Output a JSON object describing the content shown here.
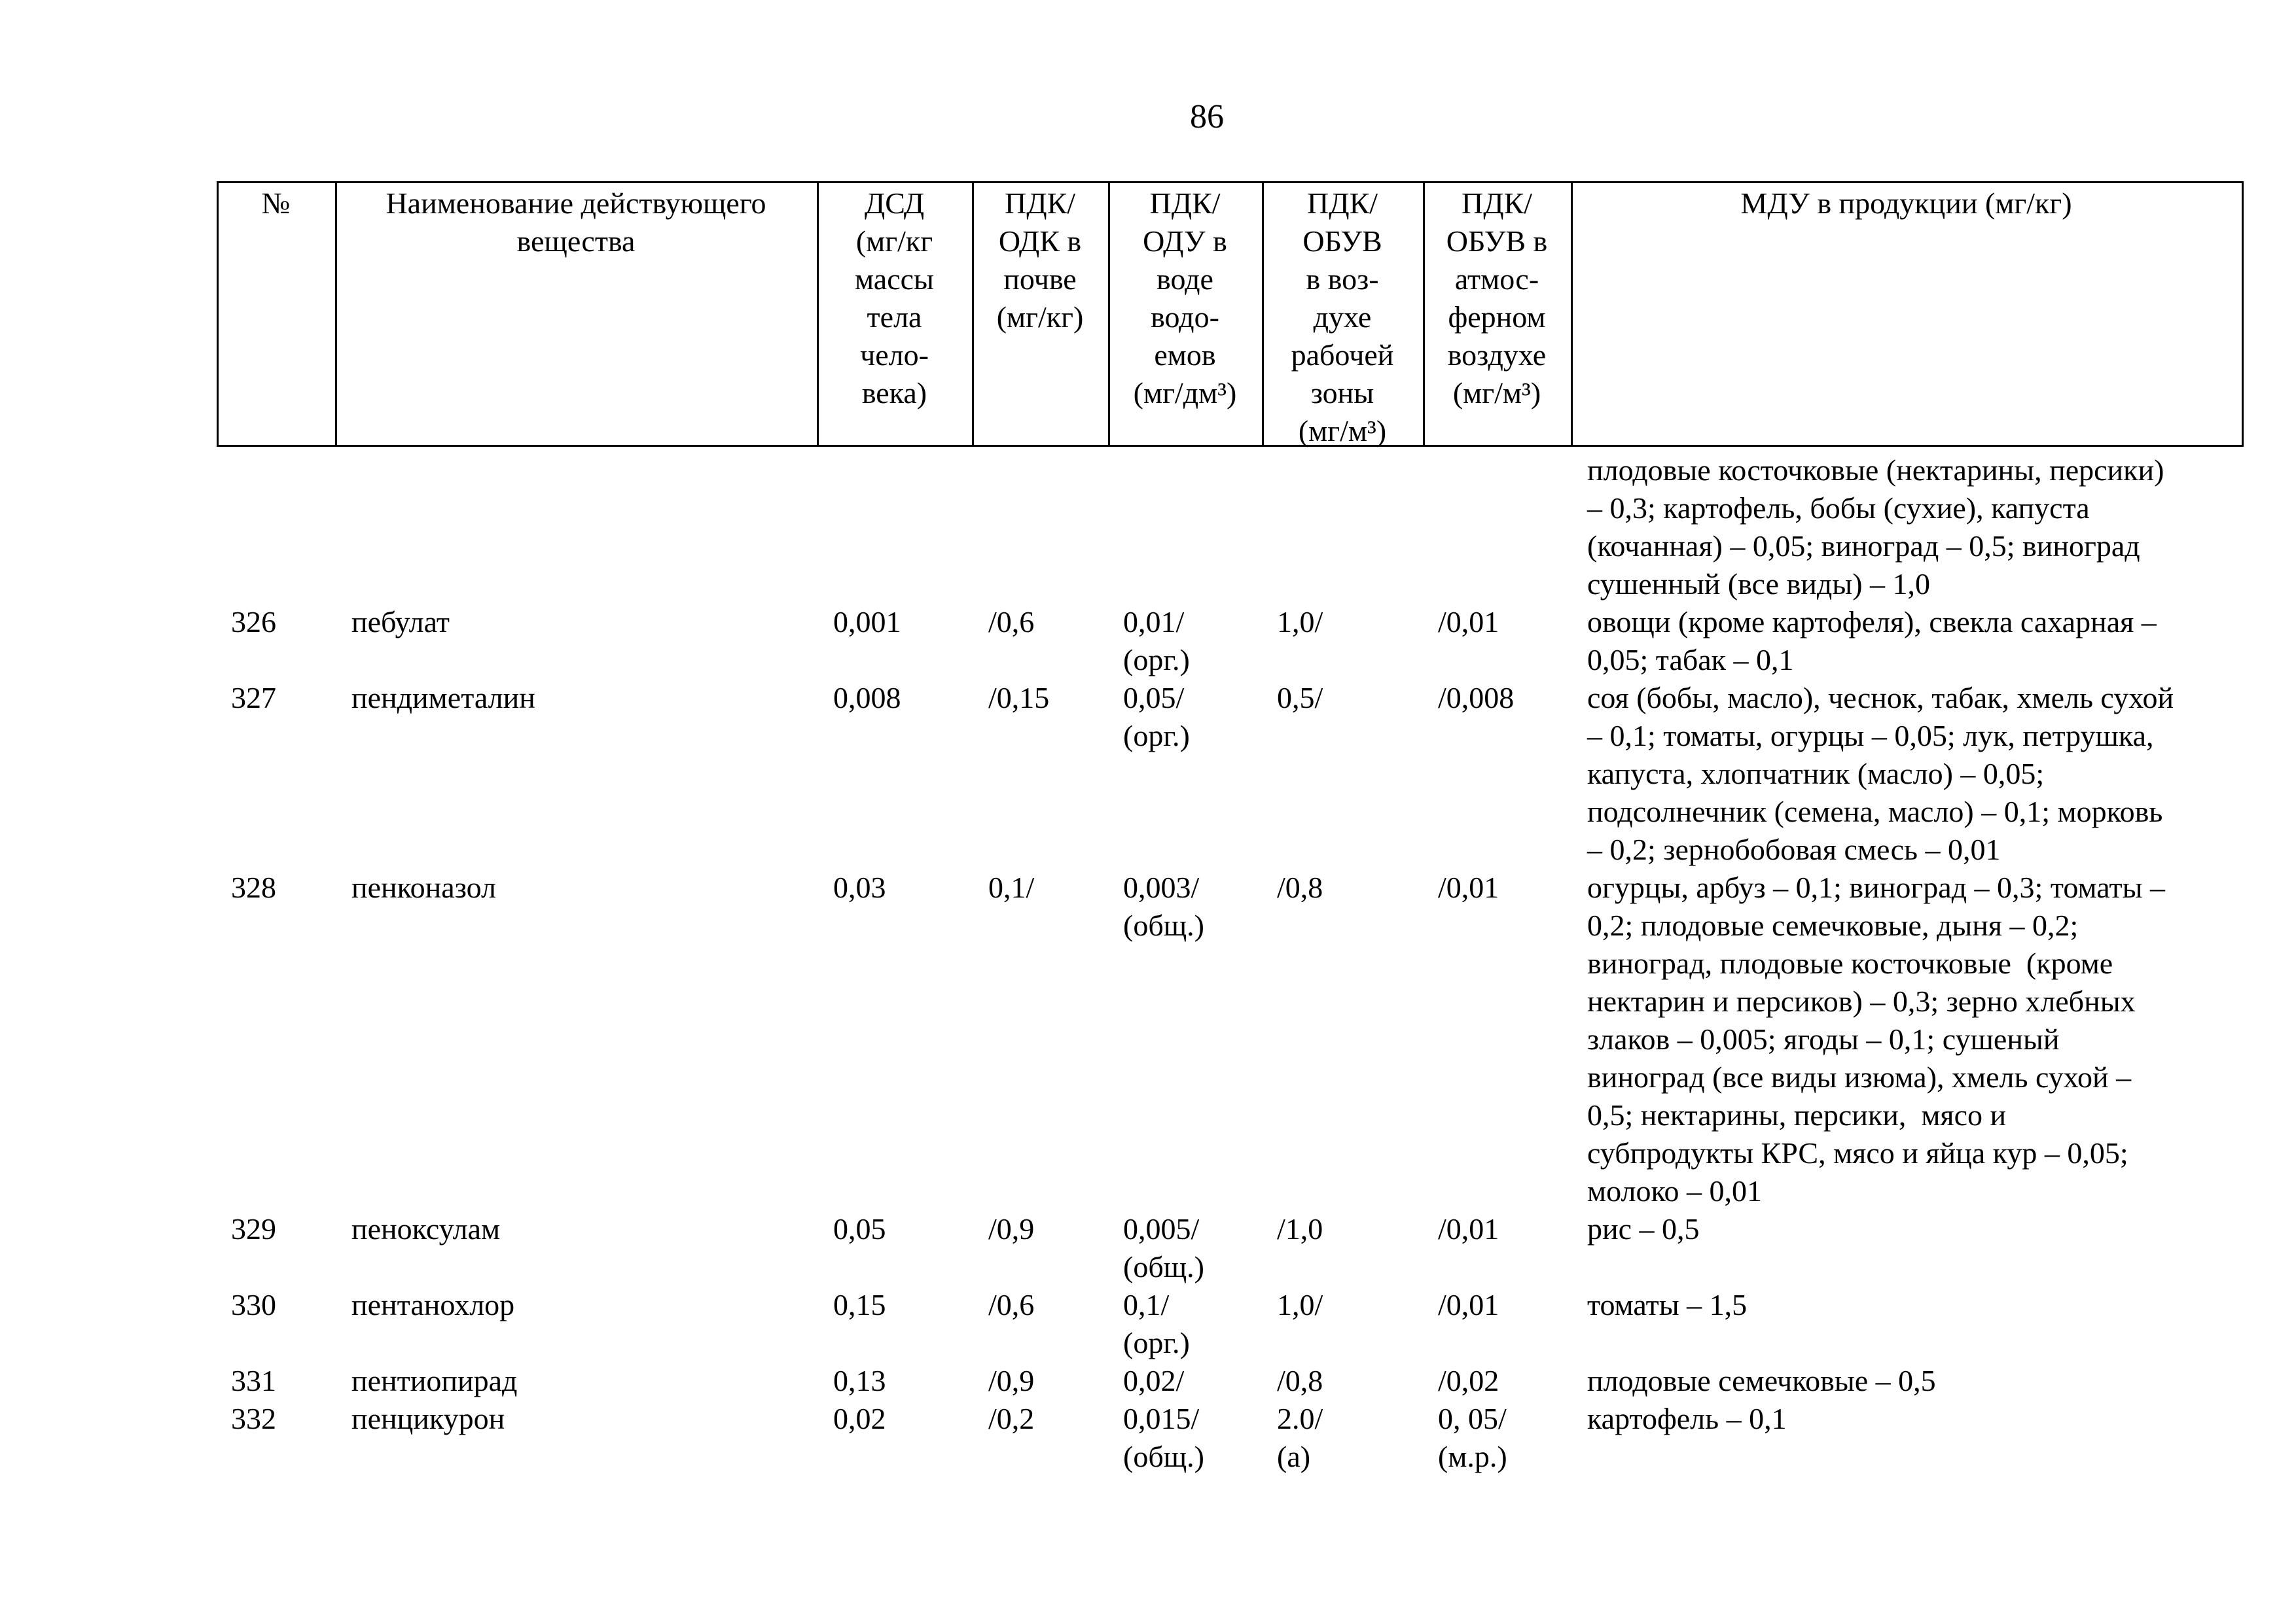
{
  "page_number": "86",
  "table": {
    "header": [
      [
        "№"
      ],
      [
        "Наименование действующего",
        "вещества"
      ],
      [
        "ДСД",
        "(мг/кг",
        "массы",
        "тела",
        "чело-",
        "века)"
      ],
      [
        "ПДК/",
        "ОДК в",
        "почве",
        "(мг/кг)"
      ],
      [
        "ПДК/",
        "ОДУ в",
        "воде",
        "водо-",
        "емов",
        "(мг/дм³)"
      ],
      [
        "ПДК/",
        "ОБУВ",
        "в воз-",
        "духе",
        "рабочей",
        "зоны",
        "(мг/м³)"
      ],
      [
        "ПДК/",
        "ОБУВ в",
        "атмос-",
        "ферном",
        "воздухе",
        "(мг/м³)"
      ],
      [
        "МДУ в продукции (мг/кг)"
      ]
    ],
    "rows": [
      [
        [],
        [],
        [],
        [],
        [],
        [],
        [],
        [
          "плодовые косточковые (нектарины, персики)",
          "– 0,3; картофель, бобы (сухие), капуста",
          "(кочанная) – 0,05; виноград – 0,5; виноград",
          "сушенный (все виды) – 1,0"
        ]
      ],
      [
        [
          "326"
        ],
        [
          "пебулат"
        ],
        [
          "0,001"
        ],
        [
          "/0,6"
        ],
        [
          "0,01/",
          "(орг.)"
        ],
        [
          "1,0/"
        ],
        [
          "/0,01"
        ],
        [
          "овощи (кроме картофеля), свекла сахарная –",
          "0,05; табак – 0,1"
        ]
      ],
      [
        [
          "327"
        ],
        [
          "пендиметалин"
        ],
        [
          "0,008"
        ],
        [
          "/0,15"
        ],
        [
          "0,05/",
          "(орг.)"
        ],
        [
          "0,5/"
        ],
        [
          "/0,008"
        ],
        [
          "соя (бобы, масло), чеснок, табак, хмель сухой",
          "– 0,1; томаты, огурцы – 0,05; лук, петрушка,",
          "капуста, хлопчатник (масло) – 0,05;",
          "подсолнечник (семена, масло) – 0,1; морковь",
          "– 0,2; зернобобовая смесь – 0,01"
        ]
      ],
      [
        [
          "328"
        ],
        [
          "пенконазол"
        ],
        [
          "0,03"
        ],
        [
          "0,1/"
        ],
        [
          "0,003/",
          "(общ.)"
        ],
        [
          "/0,8"
        ],
        [
          "/0,01"
        ],
        [
          "огурцы, арбуз – 0,1; виноград – 0,3; томаты –",
          "0,2; плодовые семечковые, дыня – 0,2;",
          "виноград, плодовые косточковые  (кроме",
          "нектарин и персиков) – 0,3; зерно хлебных",
          "злаков – 0,005; ягоды – 0,1; сушеный",
          "виноград (все виды изюма), хмель сухой –",
          "0,5; нектарины, персики,  мясо и",
          "субпродукты КРС, мясо и яйца кур – 0,05;",
          "молоко – 0,01"
        ]
      ],
      [
        [
          "329"
        ],
        [
          "пеноксулам"
        ],
        [
          "0,05"
        ],
        [
          "/0,9"
        ],
        [
          "0,005/",
          "(общ.)"
        ],
        [
          "/1,0"
        ],
        [
          "/0,01"
        ],
        [
          "рис – 0,5"
        ]
      ],
      [
        [
          "330"
        ],
        [
          "пентанохлор"
        ],
        [
          "0,15"
        ],
        [
          "/0,6"
        ],
        [
          "0,1/",
          "(орг.)"
        ],
        [
          "1,0/"
        ],
        [
          "/0,01"
        ],
        [
          "томаты – 1,5"
        ]
      ],
      [
        [
          "331"
        ],
        [
          "пентиопирад"
        ],
        [
          "0,13"
        ],
        [
          "/0,9"
        ],
        [
          "0,02/"
        ],
        [
          "/0,8"
        ],
        [
          "/0,02"
        ],
        [
          "плодовые семечковые – 0,5"
        ]
      ],
      [
        [
          "332"
        ],
        [
          "пенцикурон"
        ],
        [
          "0,02"
        ],
        [
          "/0,2"
        ],
        [
          "0,015/",
          "(общ.)"
        ],
        [
          "2.0/",
          "(а)"
        ],
        [
          "0, 05/",
          "(м.р.)"
        ],
        [
          "картофель – 0,1"
        ]
      ]
    ]
  }
}
